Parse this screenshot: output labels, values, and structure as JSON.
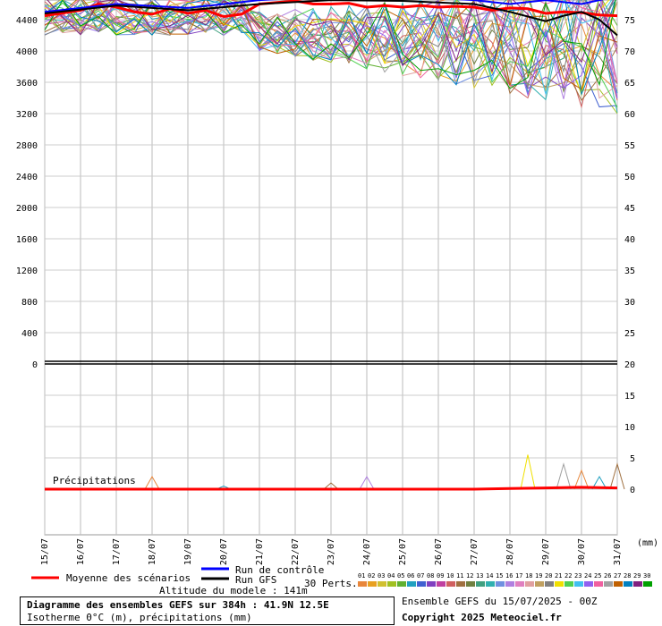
{
  "chart_data": {
    "type": "line",
    "title": "Diagramme des ensembles GEFS sur 384h : 41.9N 12.5E",
    "subtitle": "Isotherme 0°C (m), précipitations (mm)",
    "x_categories": [
      "15/07",
      "16/07",
      "17/07",
      "18/07",
      "19/07",
      "20/07",
      "21/07",
      "22/07",
      "23/07",
      "24/07",
      "25/07",
      "26/07",
      "27/07",
      "28/07",
      "29/07",
      "30/07",
      "31/07"
    ],
    "y_left_ticks": [
      0,
      400,
      800,
      1200,
      1600,
      2000,
      2400,
      2800,
      3200,
      3600,
      4000,
      4400
    ],
    "y_left_range": [
      0,
      4800
    ],
    "y_right_ticks": [
      0,
      5,
      10,
      15,
      20,
      25,
      30,
      35,
      40,
      45,
      50,
      55,
      60,
      65,
      70,
      75
    ],
    "y_right_unit": "(mm)",
    "precip_label": "Précipitations",
    "mean_color": "#ff0000",
    "control_color": "#0000ff",
    "gfs_color": "#000000",
    "series": [
      {
        "name": "Moyenne des scénarios",
        "x_days": [
          0,
          1,
          1.5,
          2,
          2.5,
          3,
          3.5,
          4,
          4.5,
          5,
          5.5,
          6,
          6.5,
          7,
          7.5,
          8,
          8.5,
          9,
          9.5,
          10,
          10.5,
          11,
          11.5,
          12,
          12.5,
          13,
          13.5,
          14,
          14.5,
          15,
          15.5,
          16
        ],
        "values": [
          4450,
          4520,
          4600,
          4560,
          4500,
          4470,
          4540,
          4480,
          4520,
          4440,
          4470,
          4600,
          4620,
          4640,
          4600,
          4600,
          4610,
          4560,
          4580,
          4560,
          4580,
          4560,
          4570,
          4560,
          4520,
          4550,
          4540,
          4480,
          4500,
          4490,
          4460,
          4450
        ]
      },
      {
        "name": "Run de contrôle",
        "x_days": [
          0,
          2,
          4,
          6,
          8,
          10,
          12,
          13,
          14,
          15,
          16
        ],
        "values": [
          4500,
          4600,
          4550,
          4650,
          4700,
          4700,
          4650,
          4600,
          4650,
          4600,
          4700
        ]
      },
      {
        "name": "Run GFS",
        "x_days": [
          0,
          2,
          4,
          6,
          8,
          10,
          12,
          13,
          14,
          14.5,
          15,
          15.5,
          16
        ],
        "values": [
          4480,
          4580,
          4520,
          4600,
          4650,
          4640,
          4600,
          4500,
          4380,
          4450,
          4500,
          4400,
          4200
        ]
      }
    ],
    "precip_mean_x_days": [
      0,
      2,
      4,
      6,
      8,
      10,
      12,
      13,
      14,
      15,
      16
    ],
    "precip_mean_values": [
      0,
      0,
      0,
      0,
      0,
      0,
      0,
      0.1,
      0.2,
      0.3,
      0.2
    ],
    "precip_spikes_x_days": [
      3,
      5,
      8,
      9,
      13.5,
      14.5,
      15,
      15.5,
      16
    ],
    "precip_spikes_values": [
      2,
      0.5,
      1,
      2,
      5.5,
      4,
      3,
      2,
      4
    ],
    "members": 30,
    "member_colors": [
      "#e8863a",
      "#e8a020",
      "#d0c030",
      "#a0c020",
      "#60b030",
      "#20a0c0",
      "#4060d0",
      "#8040c0",
      "#c040a0",
      "#d06060",
      "#a07040",
      "#708040",
      "#40a080",
      "#30b0b0",
      "#7090e0",
      "#b080e0",
      "#e080c0",
      "#e0a0a0",
      "#c0a060",
      "#808080",
      "#f0e000",
      "#50d050",
      "#40c0f0",
      "#9060f0",
      "#f060a0",
      "#a0a0a0",
      "#c06000",
      "#0080c0",
      "#802080",
      "#00a000"
    ]
  },
  "legend": {
    "mean": "Moyenne des scénarios",
    "control": "Run de contrôle",
    "gfs": "Run GFS",
    "perts": "30 Perts.",
    "member_numbers": [
      "01",
      "02",
      "03",
      "04",
      "05",
      "06",
      "07",
      "08",
      "09",
      "10",
      "11",
      "12",
      "13",
      "14",
      "15",
      "16",
      "17",
      "18",
      "19",
      "20",
      "21",
      "22",
      "23",
      "24",
      "25",
      "26",
      "27",
      "28",
      "29",
      "30"
    ]
  },
  "footer": {
    "altitude": "Altitude du modele : 141m",
    "title": "Diagramme des ensembles GEFS sur 384h : 41.9N 12.5E",
    "subtitle": "Isotherme 0°C (m), précipitations (mm)",
    "ensemble": "Ensemble GEFS du 15/07/2025 - 00Z",
    "copyright": "Copyright 2025 Meteociel.fr"
  }
}
